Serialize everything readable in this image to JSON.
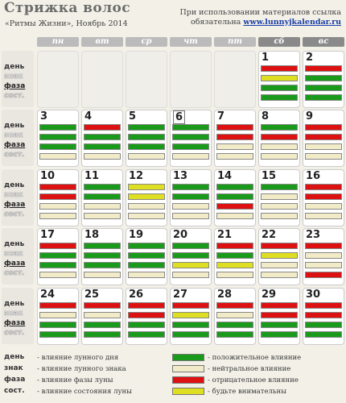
{
  "header": {
    "title": "Стрижка волос",
    "subtitle": "«Ритмы Жизни», Ноябрь 2014",
    "notice_line1": "При использовании материалов ссылка",
    "notice_line2_prefix": "обязательна",
    "notice_site": "www.lunnyjkalendar.ru"
  },
  "days_of_week": [
    "пн",
    "вт",
    "ср",
    "чт",
    "пт",
    "сб",
    "вс"
  ],
  "row_labels": [
    "день",
    "знак",
    "фаза",
    "сост."
  ],
  "colors": {
    "g": "#1a9a1a",
    "r": "#dd1111",
    "y": "#dede22",
    "b": "#f1ebc8"
  },
  "calendar": [
    [
      null,
      null,
      null,
      null,
      null,
      {
        "d": "1",
        "b": [
          "r",
          "y",
          "g",
          "g"
        ]
      },
      {
        "d": "2",
        "b": [
          "r",
          "g",
          "g",
          "g"
        ]
      }
    ],
    [
      {
        "d": "3",
        "b": [
          "g",
          "g",
          "g",
          "b"
        ]
      },
      {
        "d": "4",
        "b": [
          "r",
          "g",
          "g",
          "b"
        ]
      },
      {
        "d": "5",
        "b": [
          "g",
          "g",
          "g",
          "b"
        ]
      },
      {
        "d": "6",
        "boxed": true,
        "b": [
          "g",
          "g",
          "g",
          "b"
        ]
      },
      {
        "d": "7",
        "b": [
          "r",
          "r",
          "b",
          "b"
        ]
      },
      {
        "d": "8",
        "b": [
          "g",
          "r",
          "b",
          "b"
        ]
      },
      {
        "d": "9",
        "b": [
          "r",
          "r",
          "b",
          "b"
        ]
      }
    ],
    [
      {
        "d": "10",
        "b": [
          "r",
          "r",
          "b",
          "b"
        ]
      },
      {
        "d": "11",
        "b": [
          "g",
          "g",
          "b",
          "b"
        ]
      },
      {
        "d": "12",
        "b": [
          "y",
          "y",
          "b",
          "b"
        ]
      },
      {
        "d": "13",
        "b": [
          "g",
          "g",
          "b",
          "b"
        ]
      },
      {
        "d": "14",
        "b": [
          "g",
          "g",
          "r",
          "b"
        ]
      },
      {
        "d": "15",
        "b": [
          "g",
          "b",
          "b",
          "b"
        ]
      },
      {
        "d": "16",
        "b": [
          "r",
          "r",
          "b",
          "b"
        ]
      }
    ],
    [
      {
        "d": "17",
        "b": [
          "r",
          "g",
          "g",
          "b"
        ]
      },
      {
        "d": "18",
        "b": [
          "g",
          "g",
          "g",
          "b"
        ]
      },
      {
        "d": "19",
        "b": [
          "g",
          "g",
          "g",
          "b"
        ]
      },
      {
        "d": "20",
        "b": [
          "g",
          "g",
          "y",
          "b"
        ]
      },
      {
        "d": "21",
        "b": [
          "r",
          "g",
          "y",
          "b"
        ]
      },
      {
        "d": "22",
        "b": [
          "r",
          "y",
          "b",
          "b"
        ]
      },
      {
        "d": "23",
        "b": [
          "r",
          "b",
          "b",
          "r"
        ]
      }
    ],
    [
      {
        "d": "24",
        "b": [
          "r",
          "b",
          "g",
          "g"
        ]
      },
      {
        "d": "25",
        "b": [
          "r",
          "b",
          "g",
          "g"
        ]
      },
      {
        "d": "26",
        "b": [
          "r",
          "r",
          "g",
          "g"
        ]
      },
      {
        "d": "27",
        "b": [
          "r",
          "y",
          "g",
          "g"
        ]
      },
      {
        "d": "28",
        "b": [
          "r",
          "b",
          "g",
          "g"
        ]
      },
      {
        "d": "29",
        "b": [
          "r",
          "r",
          "g",
          "g"
        ]
      },
      {
        "d": "30",
        "b": [
          "r",
          "r",
          "g",
          "g"
        ]
      }
    ]
  ],
  "legend": {
    "left": [
      {
        "key": "день",
        "text": "- влияние лунного дня"
      },
      {
        "key": "знак",
        "text": "- влияние лунного знака"
      },
      {
        "key": "фаза",
        "text": "- влияние фазы луны"
      },
      {
        "key": "сост.",
        "text": "- влияние состояния луны"
      }
    ],
    "right": [
      {
        "color": "#1a9a1a",
        "text": "- положительное влияние"
      },
      {
        "color": "#f1ebc8",
        "text": "- нейтральное влияние"
      },
      {
        "color": "#dd1111",
        "text": "- отрицательное влияние"
      },
      {
        "color": "#dede22",
        "text": "- будьте внимательны"
      }
    ]
  }
}
